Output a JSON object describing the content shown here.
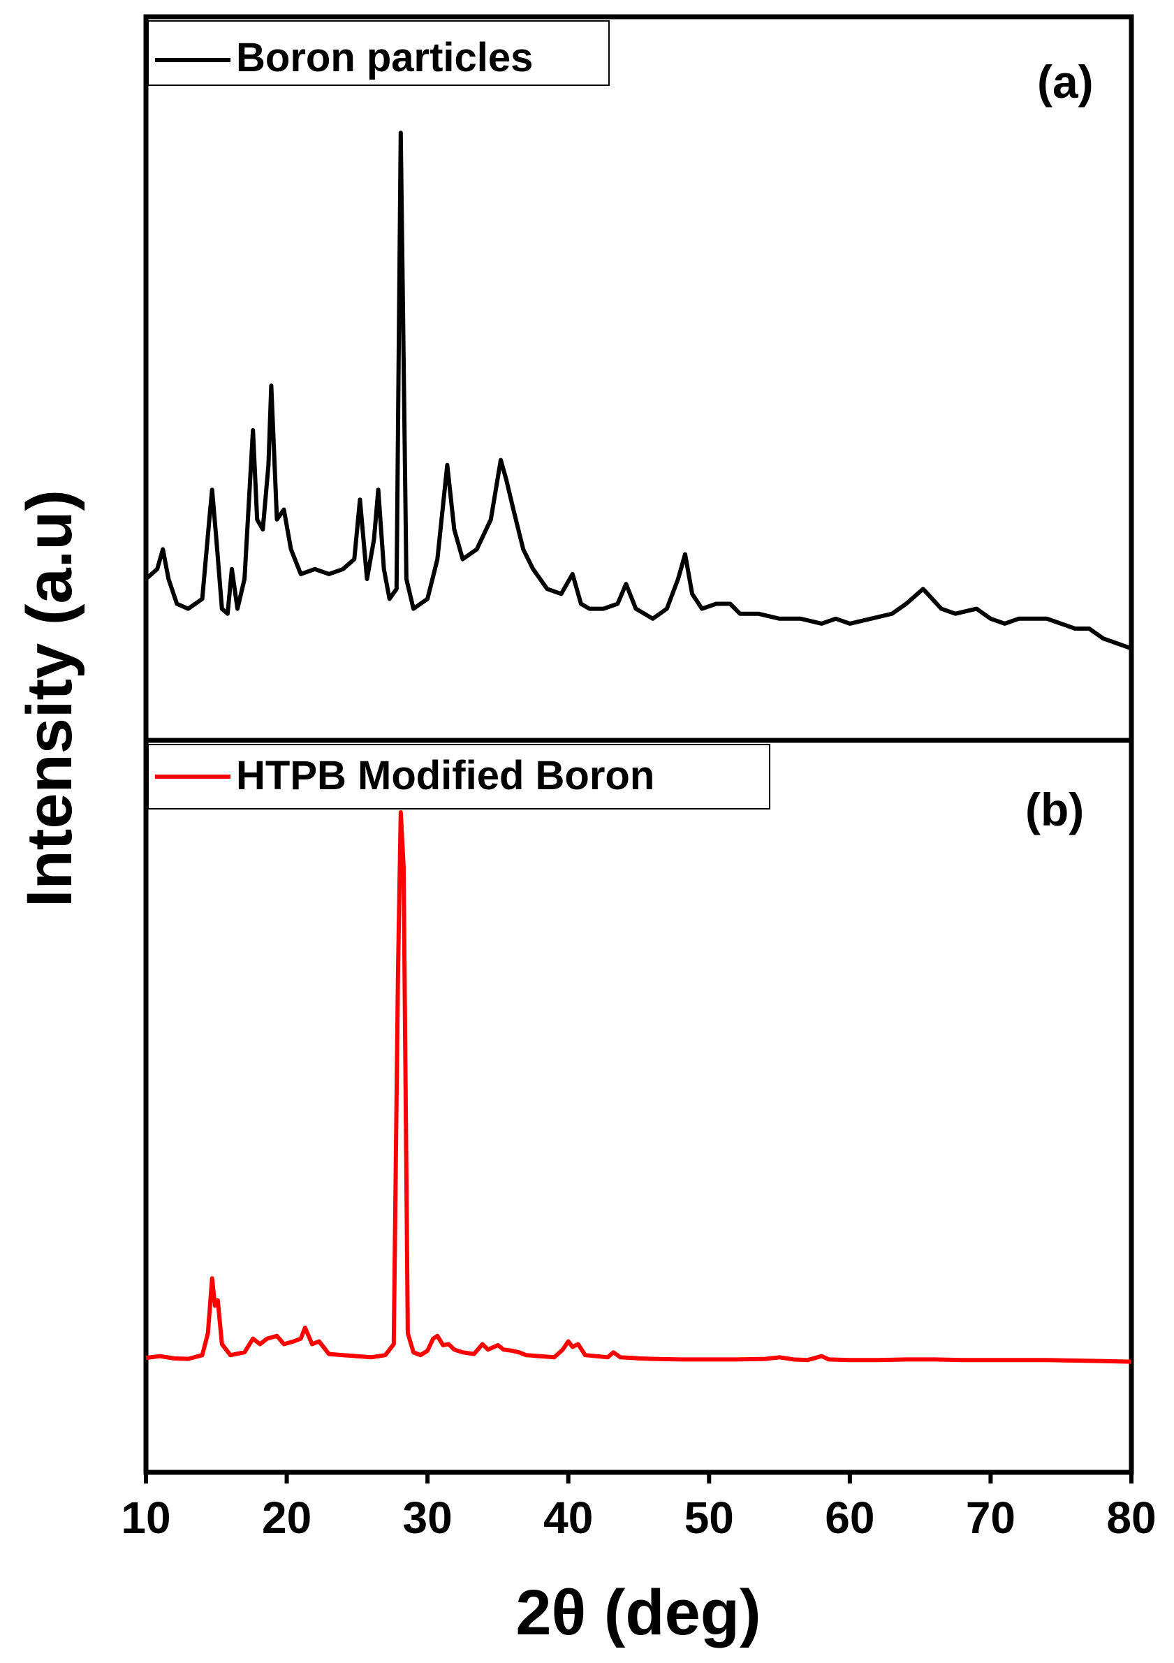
{
  "chart_data": [
    {
      "type": "line",
      "panel_label": "(a)",
      "legend": "Boron particles",
      "color": "#000000",
      "xlim": [
        10,
        80
      ],
      "x_ticks": [
        "10",
        "20",
        "30",
        "40",
        "50",
        "60",
        "70",
        "80"
      ],
      "xlabel": "2θ (deg)",
      "ylabel": "Intensity (a.u)",
      "series": [
        {
          "name": "Boron particles",
          "x": [
            10,
            10.8,
            11.2,
            11.6,
            12.2,
            13,
            14,
            14.5,
            14.7,
            15.0,
            15.4,
            15.8,
            16.1,
            16.5,
            17.0,
            17.6,
            17.9,
            18.3,
            18.7,
            18.9,
            19.3,
            19.8,
            20.3,
            21.0,
            22,
            23,
            24,
            24.8,
            25.2,
            25.7,
            26.2,
            26.5,
            26.9,
            27.3,
            27.8,
            28.1,
            28.5,
            29.0,
            30.0,
            30.7,
            31.4,
            31.9,
            32.5,
            33.5,
            34.5,
            35.2,
            35.6,
            36.1,
            36.8,
            37.5,
            38.5,
            39.5,
            40.3,
            40.9,
            41.5,
            42.5,
            43.5,
            44.1,
            44.8,
            46.0,
            47.0,
            47.8,
            48.3,
            48.8,
            49.5,
            50.5,
            51.5,
            52.2,
            53.5,
            55,
            56.5,
            58,
            59,
            60,
            61.5,
            63,
            64,
            65.2,
            66.5,
            67.5,
            69,
            70,
            71,
            72,
            73,
            74,
            75,
            76,
            77,
            78,
            79,
            80
          ],
          "y": [
            0.1,
            0.12,
            0.16,
            0.1,
            0.05,
            0.04,
            0.06,
            0.22,
            0.28,
            0.18,
            0.04,
            0.03,
            0.12,
            0.04,
            0.1,
            0.4,
            0.22,
            0.2,
            0.33,
            0.49,
            0.22,
            0.24,
            0.16,
            0.11,
            0.12,
            0.11,
            0.12,
            0.14,
            0.26,
            0.1,
            0.18,
            0.28,
            0.12,
            0.06,
            0.08,
            1.0,
            0.1,
            0.04,
            0.06,
            0.14,
            0.33,
            0.2,
            0.14,
            0.16,
            0.22,
            0.34,
            0.3,
            0.24,
            0.16,
            0.12,
            0.08,
            0.07,
            0.11,
            0.05,
            0.04,
            0.04,
            0.05,
            0.09,
            0.04,
            0.02,
            0.04,
            0.1,
            0.15,
            0.07,
            0.04,
            0.05,
            0.05,
            0.03,
            0.03,
            0.02,
            0.02,
            0.01,
            0.02,
            0.01,
            0.02,
            0.03,
            0.05,
            0.08,
            0.04,
            0.03,
            0.04,
            0.02,
            0.01,
            0.02,
            0.02,
            0.02,
            0.01,
            0.0,
            0.0,
            -0.02,
            -0.03,
            -0.04
          ]
        }
      ]
    },
    {
      "type": "line",
      "panel_label": "(b)",
      "legend": "HTPB Modified Boron",
      "color": "#ff0000",
      "xlim": [
        10,
        80
      ],
      "x_ticks": [
        "10",
        "20",
        "30",
        "40",
        "50",
        "60",
        "70",
        "80"
      ],
      "xlabel": "2θ (deg)",
      "ylabel": "Intensity (a.u)",
      "series": [
        {
          "name": "HTPB Modified Boron",
          "x": [
            10,
            11,
            12,
            13,
            14,
            14.4,
            14.7,
            14.9,
            15.1,
            15.4,
            16,
            17,
            17.6,
            18.1,
            18.6,
            19.3,
            19.8,
            20.5,
            21,
            21.3,
            21.8,
            22.3,
            23,
            24,
            25,
            26,
            27,
            27.6,
            27.9,
            28.1,
            28.3,
            28.6,
            29,
            29.5,
            30,
            30.4,
            30.7,
            31.1,
            31.5,
            31.9,
            32.5,
            33.3,
            33.9,
            34.3,
            35,
            35.4,
            36,
            36.5,
            37,
            38,
            39,
            39.6,
            40,
            40.3,
            40.7,
            41.2,
            42,
            42.8,
            43.2,
            43.7,
            44.5,
            45,
            46,
            48,
            50,
            52,
            54,
            55,
            56,
            57,
            58,
            58.5,
            60,
            62,
            64,
            66,
            68,
            70,
            72,
            74,
            76,
            78,
            80
          ],
          "y": [
            0.005,
            0.008,
            0.004,
            0.003,
            0.01,
            0.05,
            0.15,
            0.1,
            0.11,
            0.03,
            0.01,
            0.015,
            0.04,
            0.03,
            0.04,
            0.045,
            0.03,
            0.035,
            0.04,
            0.06,
            0.03,
            0.035,
            0.012,
            0.01,
            0.008,
            0.006,
            0.01,
            0.03,
            0.7,
            1.0,
            0.9,
            0.05,
            0.015,
            0.01,
            0.018,
            0.04,
            0.045,
            0.028,
            0.03,
            0.02,
            0.015,
            0.012,
            0.03,
            0.02,
            0.028,
            0.02,
            0.018,
            0.015,
            0.01,
            0.008,
            0.006,
            0.02,
            0.035,
            0.025,
            0.03,
            0.01,
            0.008,
            0.006,
            0.015,
            0.006,
            0.005,
            0.004,
            0.003,
            0.002,
            0.002,
            0.002,
            0.003,
            0.006,
            0.002,
            0.001,
            0.008,
            0.002,
            0.001,
            0.001,
            0.002,
            0.002,
            0.001,
            0.001,
            0.001,
            0.001,
            0.0,
            -0.001,
            -0.002
          ]
        }
      ]
    }
  ]
}
